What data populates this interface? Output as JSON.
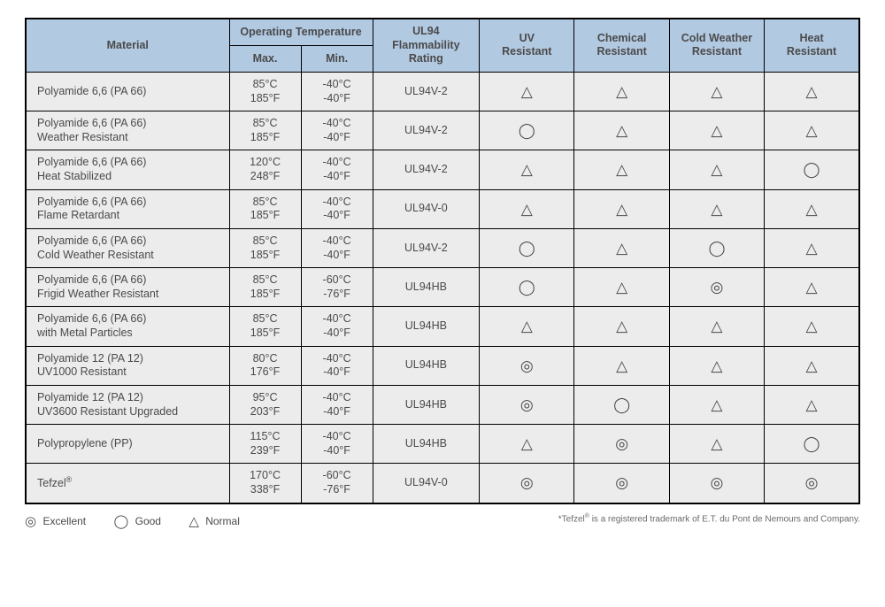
{
  "header": {
    "material": "Material",
    "op_temp": "Operating Temperature",
    "max": "Max.",
    "min": "Min.",
    "ul94": "UL94\nFlammability\nRating",
    "uv": "UV\nResistant",
    "chem": "Chemical\nResistant",
    "cold": "Cold Weather\nResistant",
    "heat": "Heat\nResistant"
  },
  "symbols": {
    "excellent": "◎",
    "good": "◯",
    "normal": "△"
  },
  "rows": [
    {
      "material": "Polyamide 6,6 (PA 66)",
      "max": "85°C\n185°F",
      "min": "-40°C\n-40°F",
      "ul94": "UL94V-2",
      "uv": "normal",
      "chem": "normal",
      "cold": "normal",
      "heat": "normal"
    },
    {
      "material": "Polyamide 6,6 (PA 66)\nWeather Resistant",
      "max": "85°C\n185°F",
      "min": "-40°C\n-40°F",
      "ul94": "UL94V-2",
      "uv": "good",
      "chem": "normal",
      "cold": "normal",
      "heat": "normal"
    },
    {
      "material": "Polyamide 6,6 (PA 66)\nHeat Stabilized",
      "max": "120°C\n248°F",
      "min": "-40°C\n-40°F",
      "ul94": "UL94V-2",
      "uv": "normal",
      "chem": "normal",
      "cold": "normal",
      "heat": "good"
    },
    {
      "material": "Polyamide 6,6 (PA 66)\nFlame Retardant",
      "max": "85°C\n185°F",
      "min": "-40°C\n-40°F",
      "ul94": "UL94V-0",
      "uv": "normal",
      "chem": "normal",
      "cold": "normal",
      "heat": "normal"
    },
    {
      "material": "Polyamide 6,6 (PA 66)\nCold Weather Resistant",
      "max": "85°C\n185°F",
      "min": "-40°C\n-40°F",
      "ul94": "UL94V-2",
      "uv": "good",
      "chem": "normal",
      "cold": "good",
      "heat": "normal"
    },
    {
      "material": "Polyamide 6,6 (PA 66)\nFrigid Weather Resistant",
      "max": "85°C\n185°F",
      "min": "-60°C\n-76°F",
      "ul94": "UL94HB",
      "uv": "good",
      "chem": "normal",
      "cold": "excellent",
      "heat": "normal"
    },
    {
      "material": "Polyamide 6,6 (PA 66)\nwith Metal Particles",
      "max": "85°C\n185°F",
      "min": "-40°C\n-40°F",
      "ul94": "UL94HB",
      "uv": "normal",
      "chem": "normal",
      "cold": "normal",
      "heat": "normal"
    },
    {
      "material": "Polyamide 12 (PA 12)\nUV1000 Resistant",
      "max": "80°C\n176°F",
      "min": "-40°C\n-40°F",
      "ul94": "UL94HB",
      "uv": "excellent",
      "chem": "normal",
      "cold": "normal",
      "heat": "normal"
    },
    {
      "material": "Polyamide 12 (PA 12)\nUV3600 Resistant Upgraded",
      "max": "95°C\n203°F",
      "min": "-40°C\n-40°F",
      "ul94": "UL94HB",
      "uv": "excellent",
      "chem": "good",
      "cold": "normal",
      "heat": "normal"
    },
    {
      "material": "Polypropylene (PP)",
      "max": "115°C\n239°F",
      "min": "-40°C\n-40°F",
      "ul94": "UL94HB",
      "uv": "normal",
      "chem": "excellent",
      "cold": "normal",
      "heat": "good"
    },
    {
      "material": "Tefzel®",
      "material_html": "Tefzel<sup>®</sup>",
      "max": "170°C\n338°F",
      "min": "-60°C\n-76°F",
      "ul94": "UL94V-0",
      "uv": "excellent",
      "chem": "excellent",
      "cold": "excellent",
      "heat": "excellent"
    }
  ],
  "legend": {
    "excellent": "Excellent",
    "good": "Good",
    "normal": "Normal",
    "footnote_html": "*Tefzel<sup>®</sup> is a registered trademark of E.T. du Pont de Nemours and Company."
  },
  "col_widths": {
    "material": 210,
    "max": 74,
    "min": 74,
    "ul94": 110,
    "uv": 98,
    "chem": 98,
    "cold": 98,
    "heat": 98
  },
  "colors": {
    "header_bg": "#b2c9e2",
    "row_bg": "#ececec",
    "border": "#000000",
    "text": "#4a4a4a"
  }
}
